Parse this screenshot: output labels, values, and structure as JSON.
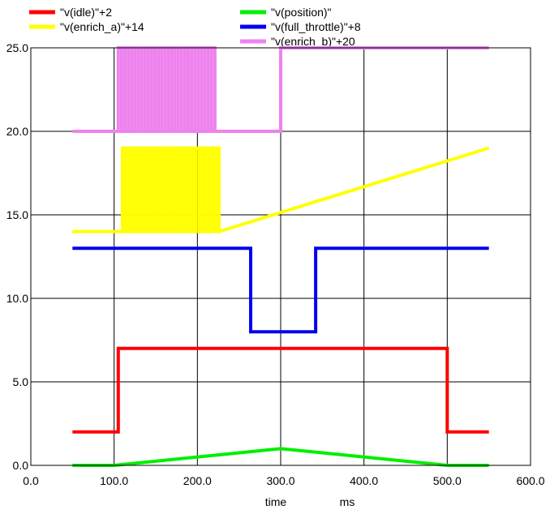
{
  "chart_data": {
    "type": "line",
    "xlabel": "time",
    "xunit": "ms",
    "xlim": [
      0,
      600
    ],
    "ylim": [
      0,
      25
    ],
    "xticks": [
      0,
      100,
      200,
      300,
      400,
      500,
      600
    ],
    "xtick_labels": [
      "0.0",
      "100.0",
      "200.0",
      "300.0",
      "400.0",
      "500.0",
      "600.0"
    ],
    "yticks": [
      0,
      5,
      10,
      15,
      20,
      25
    ],
    "ytick_labels": [
      "0.0",
      "5.0",
      "10.0",
      "15.0",
      "20.0",
      "25.0"
    ],
    "grid": true,
    "legend_position": "top",
    "series": [
      {
        "name": "\"v(idle)\"+2",
        "color": "#ff0000",
        "x": [
          50,
          105,
          105,
          500,
          500,
          550
        ],
        "y": [
          2,
          2,
          7,
          7,
          2,
          2
        ]
      },
      {
        "name": "\"v(position)\"",
        "color": "#00ee00",
        "x": [
          50,
          100,
          300,
          500,
          550
        ],
        "y": [
          0,
          0,
          1,
          0,
          0
        ]
      },
      {
        "name": "\"v(enrich_a)\"+14",
        "color": "#ffff00",
        "x": [
          50,
          110,
          110,
          114,
          114,
          118,
          118,
          122,
          122,
          126,
          126,
          130,
          130,
          134,
          134,
          138,
          138,
          142,
          142,
          146,
          146,
          150,
          150,
          154,
          154,
          158,
          158,
          162,
          162,
          166,
          166,
          170,
          170,
          174,
          174,
          178,
          178,
          182,
          182,
          186,
          186,
          190,
          190,
          194,
          194,
          198,
          198,
          202,
          202,
          206,
          206,
          210,
          210,
          214,
          214,
          218,
          218,
          222,
          222,
          226,
          226,
          550
        ],
        "y": [
          14,
          14,
          19,
          19,
          14,
          14,
          19,
          19,
          14,
          14,
          19,
          19,
          14,
          14,
          19,
          19,
          14,
          14,
          19,
          19,
          14,
          14,
          19,
          19,
          14,
          14,
          19,
          19,
          14,
          14,
          19,
          19,
          14,
          14,
          19,
          19,
          14,
          14,
          19,
          19,
          14,
          14,
          19,
          19,
          14,
          14,
          19,
          19,
          14,
          14,
          19,
          19,
          14,
          14,
          19,
          19,
          14,
          14,
          19,
          19,
          14,
          19
        ]
      },
      {
        "name": "\"v(full_throttle)\"+8",
        "color": "#0000ee",
        "x": [
          50,
          264,
          264,
          342,
          342,
          550
        ],
        "y": [
          13,
          13,
          8,
          8,
          13,
          13
        ]
      },
      {
        "name": "\"v(enrich_b)\"+20",
        "color": "#ee82ee",
        "x": [
          50,
          105,
          105,
          109,
          109,
          113,
          113,
          117,
          117,
          121,
          121,
          125,
          125,
          129,
          129,
          133,
          133,
          137,
          137,
          141,
          141,
          145,
          145,
          149,
          149,
          153,
          153,
          157,
          157,
          161,
          161,
          165,
          165,
          169,
          169,
          173,
          173,
          177,
          177,
          181,
          181,
          185,
          185,
          189,
          189,
          193,
          193,
          197,
          197,
          201,
          201,
          205,
          205,
          209,
          209,
          213,
          213,
          217,
          217,
          221,
          221,
          300,
          300,
          550
        ],
        "y": [
          20,
          20,
          25,
          25,
          20,
          20,
          25,
          25,
          20,
          20,
          25,
          25,
          20,
          20,
          25,
          25,
          20,
          20,
          25,
          25,
          20,
          20,
          25,
          25,
          20,
          20,
          25,
          25,
          20,
          20,
          25,
          25,
          20,
          20,
          25,
          25,
          20,
          20,
          25,
          25,
          20,
          20,
          25,
          25,
          20,
          20,
          25,
          25,
          20,
          20,
          25,
          25,
          20,
          20,
          25,
          25,
          20,
          20,
          25,
          25,
          20,
          20,
          25,
          25
        ]
      }
    ]
  }
}
